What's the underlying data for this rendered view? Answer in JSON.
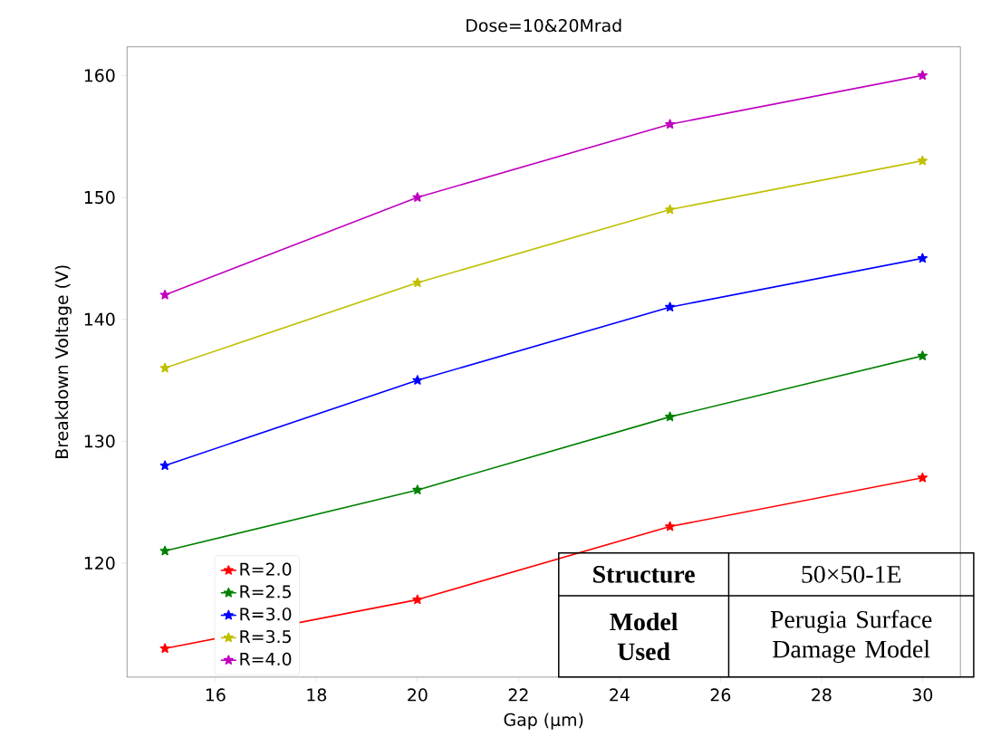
{
  "chart_data": {
    "type": "line",
    "title": "Dose=10&20Mrad",
    "xlabel": "Gap (µm)",
    "ylabel": "Breakdown Voltage (V)",
    "x": [
      15,
      20,
      25,
      30
    ],
    "series": [
      {
        "name": "R=2.0",
        "color": "#ff0000",
        "values": [
          113,
          117,
          123,
          127
        ]
      },
      {
        "name": "R=2.5",
        "color": "#008000",
        "values": [
          121,
          126,
          132,
          137
        ]
      },
      {
        "name": "R=3.0",
        "color": "#0000ff",
        "values": [
          128,
          135,
          141,
          145
        ]
      },
      {
        "name": "R=3.5",
        "color": "#bfbf00",
        "values": [
          136,
          143,
          149,
          153
        ]
      },
      {
        "name": "R=4.0",
        "color": "#bf00bf",
        "values": [
          142,
          150,
          156,
          160
        ]
      }
    ],
    "xlim": [
      14.25,
      30.75
    ],
    "ylim": [
      110.65,
      162.35
    ],
    "xticks": [
      16,
      18,
      20,
      22,
      24,
      26,
      28,
      30
    ],
    "yticks": [
      120,
      130,
      140,
      150,
      160
    ],
    "legend": "bottom left",
    "marker": "star",
    "line_style": "solid",
    "annotations": [
      "Structure",
      "50×50-1E",
      "Model Used",
      "Perugia Surface Damage Model"
    ]
  }
}
